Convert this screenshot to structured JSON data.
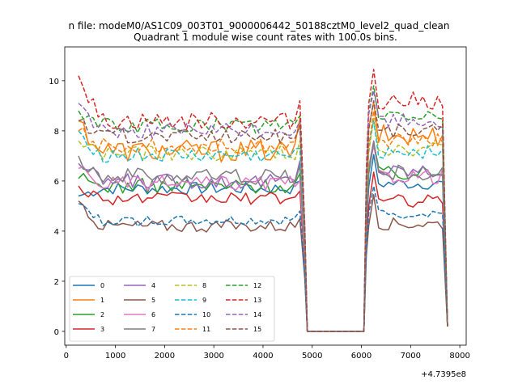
{
  "chart_data": {
    "type": "line",
    "suptitle": "n file: modeM0/AS1C09_003T01_9000006442_50188cztM0_level2_quad_clean",
    "title": "Quadrant 1 module wise count rates with 100.0s bins.",
    "xlabel": "",
    "ylabel": "",
    "x_offset_label": "+4.7395e8",
    "xlim": [
      -30,
      8130
    ],
    "ylim": [
      -0.55,
      11.35
    ],
    "xticks": [
      0,
      1000,
      2000,
      3000,
      4000,
      5000,
      6000,
      7000,
      8000
    ],
    "xtick_labels": [
      "0",
      "1000",
      "2000",
      "3000",
      "4000",
      "5000",
      "6000",
      "7000",
      "8000"
    ],
    "yticks": [
      0,
      2,
      4,
      6,
      8,
      10
    ],
    "ytick_labels": [
      "0",
      "2",
      "4",
      "6",
      "8",
      "10"
    ],
    "legend_position": "lower-left",
    "gap": [
      4900,
      6050
    ],
    "series": [
      {
        "name": "0",
        "color": "#1f77b4",
        "dashed": false,
        "level": 5.7,
        "start": 5.4,
        "end_left": 6.0,
        "right": 5.9,
        "amp": 0.25
      },
      {
        "name": "1",
        "color": "#ff7f0e",
        "dashed": false,
        "level": 7.2,
        "start": 8.4,
        "end_left": 8.5,
        "right": 7.8,
        "amp": 0.45
      },
      {
        "name": "2",
        "color": "#2ca02c",
        "dashed": false,
        "level": 5.8,
        "start": 6.1,
        "end_left": 6.3,
        "right": 6.3,
        "amp": 0.3
      },
      {
        "name": "3",
        "color": "#d62728",
        "dashed": false,
        "level": 5.3,
        "start": 5.8,
        "end_left": 5.6,
        "right": 5.2,
        "amp": 0.25
      },
      {
        "name": "4",
        "color": "#9467bd",
        "dashed": false,
        "level": 6.0,
        "start": 6.7,
        "end_left": 6.8,
        "right": 6.4,
        "amp": 0.3
      },
      {
        "name": "5",
        "color": "#8c564b",
        "dashed": false,
        "level": 4.2,
        "start": 5.2,
        "end_left": 4.5,
        "right": 4.3,
        "amp": 0.25
      },
      {
        "name": "6",
        "color": "#e377c2",
        "dashed": false,
        "level": 5.9,
        "start": 6.5,
        "end_left": 6.0,
        "right": 6.2,
        "amp": 0.3
      },
      {
        "name": "7",
        "color": "#7f7f7f",
        "dashed": false,
        "level": 6.2,
        "start": 7.0,
        "end_left": 6.6,
        "right": 6.3,
        "amp": 0.35
      },
      {
        "name": "8",
        "color": "#bcbd22",
        "dashed": true,
        "level": 7.1,
        "start": 7.6,
        "end_left": 7.6,
        "right": 7.3,
        "amp": 0.3
      },
      {
        "name": "9",
        "color": "#17becf",
        "dashed": true,
        "level": 7.0,
        "start": 8.0,
        "end_left": 7.3,
        "right": 7.2,
        "amp": 0.3
      },
      {
        "name": "10",
        "color": "#1f77b4",
        "dashed": true,
        "level": 4.4,
        "start": 5.1,
        "end_left": 4.8,
        "right": 4.7,
        "amp": 0.2
      },
      {
        "name": "11",
        "color": "#ff7f0e",
        "dashed": true,
        "level": 7.4,
        "start": 8.0,
        "end_left": 8.3,
        "right": 7.6,
        "amp": 0.3
      },
      {
        "name": "12",
        "color": "#2ca02c",
        "dashed": true,
        "level": 8.2,
        "start": 8.8,
        "end_left": 8.6,
        "right": 8.6,
        "amp": 0.3
      },
      {
        "name": "13",
        "color": "#d62728",
        "dashed": true,
        "level": 8.4,
        "start": 10.2,
        "end_left": 9.2,
        "right": 9.2,
        "amp": 0.35
      },
      {
        "name": "14",
        "color": "#9467bd",
        "dashed": true,
        "level": 8.0,
        "start": 9.1,
        "end_left": 8.4,
        "right": 8.4,
        "amp": 0.3
      },
      {
        "name": "15",
        "color": "#8c564b",
        "dashed": true,
        "level": 7.8,
        "start": 8.4,
        "end_left": 8.2,
        "right": 8.0,
        "amp": 0.3
      }
    ]
  }
}
